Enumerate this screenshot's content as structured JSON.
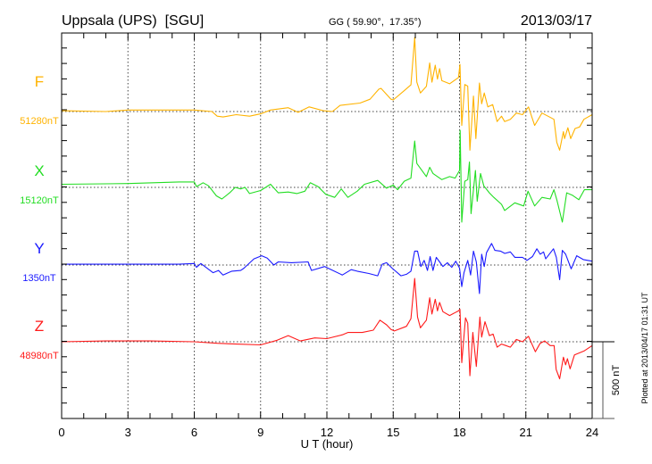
{
  "chart_data": {
    "type": "line",
    "title": "Uppsala (UPS)  [SGU]",
    "subtitle": "GG ( 59.90°,  17.35°)",
    "date": "2013/03/17",
    "xlabel": "U T (hour)",
    "xlim": [
      0,
      24
    ],
    "xticks": [
      "0",
      "3",
      "6",
      "9",
      "12",
      "15",
      "18",
      "21",
      "24"
    ],
    "scale_bar_label": "500 nT",
    "scale_bar_nT": 500,
    "tick_interval_nT": 100,
    "grid": "dotted vertical every 3 h, dotted baseline per series",
    "footer": "Plotted at 2013/04/17 01:31 UT",
    "series": [
      {
        "name": "F",
        "baseline_label": "51280nT",
        "color": "#ffb300",
        "points": [
          [
            0,
            5
          ],
          [
            2,
            0
          ],
          [
            3,
            10
          ],
          [
            5.3,
            10
          ],
          [
            6,
            10
          ],
          [
            6.8,
            0
          ],
          [
            7.04,
            -30
          ],
          [
            7.3,
            -35
          ],
          [
            7.9,
            -20
          ],
          [
            8.5,
            -30
          ],
          [
            9,
            -15
          ],
          [
            9.45,
            10
          ],
          [
            10.25,
            25
          ],
          [
            10.7,
            -5
          ],
          [
            11.2,
            30
          ],
          [
            11.85,
            5
          ],
          [
            12.25,
            0
          ],
          [
            12.6,
            40
          ],
          [
            13.5,
            55
          ],
          [
            13.95,
            80
          ],
          [
            14.35,
            145
          ],
          [
            14.45,
            150
          ],
          [
            14.9,
            80
          ],
          [
            15.0,
            75
          ],
          [
            15.5,
            135
          ],
          [
            15.8,
            173
          ],
          [
            15.97,
            480
          ],
          [
            16.07,
            190
          ],
          [
            16.23,
            120
          ],
          [
            16.5,
            163
          ],
          [
            16.65,
            315
          ],
          [
            16.75,
            190
          ],
          [
            16.9,
            300
          ],
          [
            17.0,
            210
          ],
          [
            17.1,
            278
          ],
          [
            17.2,
            200
          ],
          [
            17.55,
            180
          ],
          [
            17.95,
            220
          ],
          [
            18.02,
            305
          ],
          [
            18.1,
            -90
          ],
          [
            18.24,
            175
          ],
          [
            18.37,
            165
          ],
          [
            18.47,
            -250
          ],
          [
            18.63,
            100
          ],
          [
            18.74,
            -175
          ],
          [
            18.9,
            185
          ],
          [
            19.0,
            50
          ],
          [
            19.12,
            120
          ],
          [
            19.28,
            30
          ],
          [
            19.5,
            45
          ],
          [
            19.7,
            -65
          ],
          [
            19.9,
            -30
          ],
          [
            20.04,
            -65
          ],
          [
            20.3,
            -50
          ],
          [
            20.57,
            -10
          ],
          [
            20.85,
            -20
          ],
          [
            21.12,
            30
          ],
          [
            21.4,
            -90
          ],
          [
            21.73,
            -10
          ],
          [
            22.0,
            -30
          ],
          [
            22.27,
            -50
          ],
          [
            22.4,
            -200
          ],
          [
            22.53,
            -250
          ],
          [
            22.7,
            -130
          ],
          [
            22.75,
            -175
          ],
          [
            22.9,
            -105
          ],
          [
            23.03,
            -175
          ],
          [
            23.23,
            -110
          ],
          [
            23.43,
            -100
          ],
          [
            23.63,
            -50
          ],
          [
            24,
            -20
          ]
        ]
      },
      {
        "name": "X",
        "baseline_label": "15120nT",
        "color": "#22dd22",
        "points": [
          [
            0,
            20
          ],
          [
            3,
            25
          ],
          [
            5.3,
            35
          ],
          [
            6,
            35
          ],
          [
            6.1,
            5
          ],
          [
            6.4,
            30
          ],
          [
            6.65,
            10
          ],
          [
            7,
            -55
          ],
          [
            7.25,
            -75
          ],
          [
            7.6,
            -35
          ],
          [
            7.85,
            0
          ],
          [
            8.1,
            -10
          ],
          [
            8.3,
            0
          ],
          [
            8.5,
            -40
          ],
          [
            9,
            -20
          ],
          [
            9.45,
            20
          ],
          [
            9.8,
            -35
          ],
          [
            10.25,
            -30
          ],
          [
            10.65,
            -40
          ],
          [
            11,
            -25
          ],
          [
            11.25,
            30
          ],
          [
            11.6,
            5
          ],
          [
            11.95,
            -45
          ],
          [
            12.35,
            -65
          ],
          [
            12.65,
            -10
          ],
          [
            12.95,
            -65
          ],
          [
            13.37,
            -25
          ],
          [
            13.7,
            20
          ],
          [
            14.3,
            45
          ],
          [
            14.7,
            -5
          ],
          [
            15.0,
            15
          ],
          [
            15.2,
            -15
          ],
          [
            15.5,
            40
          ],
          [
            15.8,
            60
          ],
          [
            15.97,
            300
          ],
          [
            16.07,
            155
          ],
          [
            16.5,
            70
          ],
          [
            16.65,
            130
          ],
          [
            16.8,
            90
          ],
          [
            17.2,
            50
          ],
          [
            17.55,
            70
          ],
          [
            17.8,
            60
          ],
          [
            18.0,
            110
          ],
          [
            18.03,
            370
          ],
          [
            18.1,
            -225
          ],
          [
            18.24,
            40
          ],
          [
            18.37,
            50
          ],
          [
            18.45,
            165
          ],
          [
            18.52,
            -170
          ],
          [
            18.72,
            110
          ],
          [
            18.8,
            -90
          ],
          [
            18.95,
            90
          ],
          [
            19.1,
            10
          ],
          [
            19.35,
            -35
          ],
          [
            19.55,
            -65
          ],
          [
            19.9,
            -110
          ],
          [
            20.04,
            -150
          ],
          [
            20.5,
            -100
          ],
          [
            20.9,
            -120
          ],
          [
            21.1,
            -25
          ],
          [
            21.4,
            -120
          ],
          [
            21.73,
            -65
          ],
          [
            22.1,
            -75
          ],
          [
            22.27,
            -15
          ],
          [
            22.4,
            -80
          ],
          [
            22.65,
            -225
          ],
          [
            22.85,
            -35
          ],
          [
            23.1,
            -50
          ],
          [
            23.4,
            -80
          ],
          [
            23.65,
            -15
          ],
          [
            24,
            -15
          ]
        ]
      },
      {
        "name": "Y",
        "baseline_label": "1350nT",
        "color": "#1a1aff",
        "points": [
          [
            0,
            5
          ],
          [
            3,
            5
          ],
          [
            5.3,
            5
          ],
          [
            6,
            10
          ],
          [
            6.1,
            -15
          ],
          [
            6.3,
            10
          ],
          [
            6.85,
            -50
          ],
          [
            7.1,
            -35
          ],
          [
            7.3,
            -65
          ],
          [
            7.7,
            -40
          ],
          [
            8.1,
            -35
          ],
          [
            8.25,
            -20
          ],
          [
            8.7,
            40
          ],
          [
            9.05,
            60
          ],
          [
            9.3,
            45
          ],
          [
            9.6,
            0
          ],
          [
            9.8,
            20
          ],
          [
            10.4,
            15
          ],
          [
            11.15,
            20
          ],
          [
            11.3,
            -35
          ],
          [
            11.9,
            -10
          ],
          [
            12.2,
            -30
          ],
          [
            12.7,
            -65
          ],
          [
            13.1,
            -30
          ],
          [
            13.37,
            -40
          ],
          [
            13.9,
            -55
          ],
          [
            14.3,
            -70
          ],
          [
            14.5,
            5
          ],
          [
            14.7,
            15
          ],
          [
            14.95,
            -20
          ],
          [
            15.35,
            -70
          ],
          [
            15.6,
            -60
          ],
          [
            15.8,
            -40
          ],
          [
            15.97,
            90
          ],
          [
            16.1,
            90
          ],
          [
            16.25,
            -10
          ],
          [
            16.4,
            30
          ],
          [
            16.55,
            -35
          ],
          [
            16.67,
            55
          ],
          [
            16.8,
            -35
          ],
          [
            16.95,
            50
          ],
          [
            17.1,
            20
          ],
          [
            17.25,
            -10
          ],
          [
            17.45,
            15
          ],
          [
            17.65,
            -15
          ],
          [
            17.83,
            25
          ],
          [
            18,
            -20
          ],
          [
            18.1,
            -140
          ],
          [
            18.2,
            -50
          ],
          [
            18.37,
            30
          ],
          [
            18.5,
            -65
          ],
          [
            18.63,
            90
          ],
          [
            18.76,
            20
          ],
          [
            18.9,
            -185
          ],
          [
            19.0,
            70
          ],
          [
            19.12,
            -10
          ],
          [
            19.22,
            80
          ],
          [
            19.45,
            140
          ],
          [
            19.6,
            95
          ],
          [
            19.85,
            90
          ],
          [
            20.05,
            75
          ],
          [
            20.3,
            85
          ],
          [
            20.5,
            50
          ],
          [
            20.85,
            50
          ],
          [
            21.05,
            30
          ],
          [
            21.3,
            55
          ],
          [
            21.5,
            105
          ],
          [
            21.65,
            70
          ],
          [
            21.8,
            85
          ],
          [
            21.9,
            40
          ],
          [
            22.25,
            105
          ],
          [
            22.38,
            50
          ],
          [
            22.53,
            -95
          ],
          [
            22.65,
            95
          ],
          [
            22.8,
            70
          ],
          [
            23.05,
            -25
          ],
          [
            23.3,
            60
          ],
          [
            23.6,
            35
          ],
          [
            24,
            25
          ]
        ]
      },
      {
        "name": "Z",
        "baseline_label": "48980nT",
        "color": "#ff1a1a",
        "points": [
          [
            0,
            0
          ],
          [
            2,
            5
          ],
          [
            4,
            5
          ],
          [
            6,
            0
          ],
          [
            7.04,
            -10
          ],
          [
            7.9,
            -15
          ],
          [
            9,
            -20
          ],
          [
            9.75,
            10
          ],
          [
            10.25,
            40
          ],
          [
            10.8,
            5
          ],
          [
            11.45,
            25
          ],
          [
            12,
            20
          ],
          [
            12.7,
            45
          ],
          [
            12.95,
            60
          ],
          [
            13.6,
            60
          ],
          [
            14.1,
            75
          ],
          [
            14.4,
            140
          ],
          [
            14.7,
            110
          ],
          [
            14.9,
            80
          ],
          [
            15.05,
            70
          ],
          [
            15.6,
            100
          ],
          [
            15.8,
            150
          ],
          [
            15.97,
            410
          ],
          [
            16.1,
            160
          ],
          [
            16.23,
            90
          ],
          [
            16.5,
            140
          ],
          [
            16.65,
            285
          ],
          [
            16.75,
            180
          ],
          [
            16.9,
            275
          ],
          [
            17.0,
            200
          ],
          [
            17.1,
            255
          ],
          [
            17.25,
            195
          ],
          [
            17.55,
            170
          ],
          [
            17.95,
            200
          ],
          [
            18.02,
            210
          ],
          [
            18.1,
            -135
          ],
          [
            18.27,
            155
          ],
          [
            18.37,
            120
          ],
          [
            18.47,
            -220
          ],
          [
            18.6,
            60
          ],
          [
            18.76,
            -160
          ],
          [
            18.92,
            160
          ],
          [
            19.0,
            30
          ],
          [
            19.15,
            130
          ],
          [
            19.35,
            40
          ],
          [
            19.52,
            50
          ],
          [
            19.7,
            -35
          ],
          [
            19.9,
            -15
          ],
          [
            20.1,
            -25
          ],
          [
            20.3,
            -35
          ],
          [
            20.57,
            15
          ],
          [
            20.85,
            0
          ],
          [
            21.12,
            35
          ],
          [
            21.43,
            -65
          ],
          [
            21.65,
            -10
          ],
          [
            21.85,
            5
          ],
          [
            22.1,
            -25
          ],
          [
            22.28,
            -25
          ],
          [
            22.37,
            -180
          ],
          [
            22.53,
            -240
          ],
          [
            22.7,
            -100
          ],
          [
            22.8,
            -150
          ],
          [
            22.88,
            -110
          ],
          [
            23.0,
            -175
          ],
          [
            23.2,
            -85
          ],
          [
            23.63,
            -60
          ],
          [
            24,
            -25
          ]
        ]
      }
    ]
  }
}
